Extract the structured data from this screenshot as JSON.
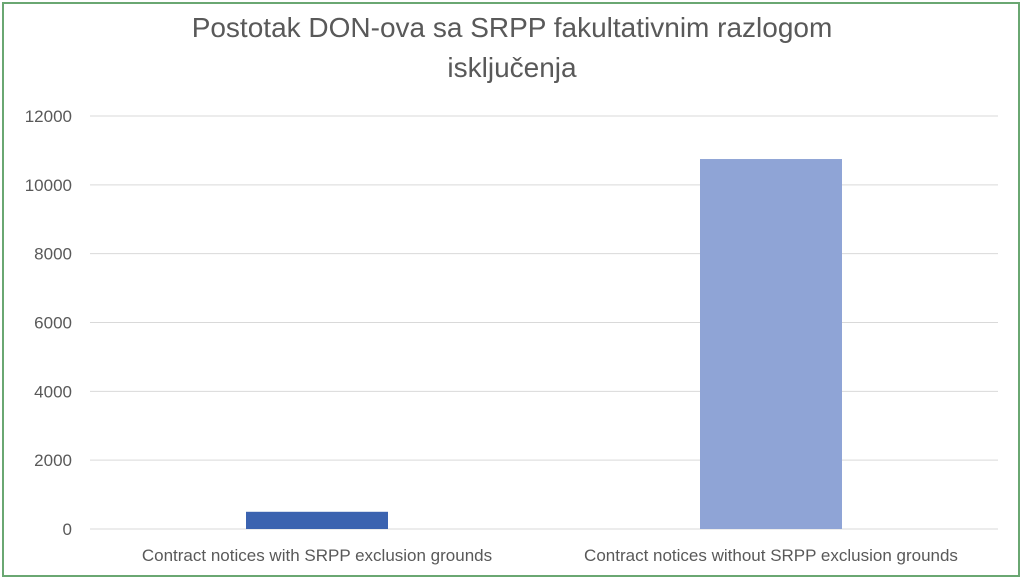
{
  "chart_data": {
    "type": "bar",
    "title_lines": [
      "Postotak DON-ova sa SRPP fakultativnim razlogom",
      "isključenja"
    ],
    "categories": [
      "Contract notices with SRPP exclusion grounds",
      "Contract notices without SRPP exclusion grounds"
    ],
    "values": [
      500,
      10750
    ],
    "colors": [
      "#3b63b0",
      "#8fa4d6"
    ],
    "ylim": [
      0,
      12000
    ],
    "yticks": [
      0,
      2000,
      4000,
      6000,
      8000,
      10000,
      12000
    ],
    "grid": true,
    "legend": "none"
  }
}
